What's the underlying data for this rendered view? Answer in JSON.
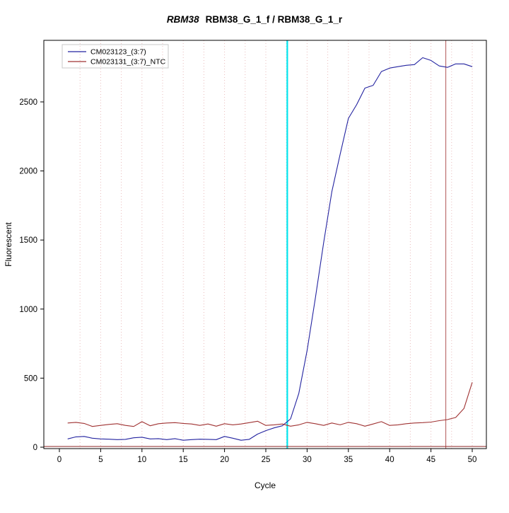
{
  "title": {
    "gene": "RBM38",
    "rest": "RBM38_G_1_f / RBM38_G_1_r"
  },
  "chart_data": {
    "type": "line",
    "title": "RBM38 RBM38_G_1_f / RBM38_G_1_r",
    "xlabel": "Cycle",
    "ylabel": "Fluorescent",
    "xlim": [
      0,
      51
    ],
    "ylim": [
      0,
      2950
    ],
    "x_ticks": [
      0,
      5,
      10,
      15,
      20,
      25,
      30,
      35,
      40,
      45,
      50
    ],
    "y_ticks": [
      0,
      500,
      1000,
      1500,
      2000,
      2500
    ],
    "grid": {
      "vertical_step": 2.5,
      "color": "#e9bcbc",
      "style": "dotted"
    },
    "legend_position": "top-left",
    "baseline_hline": {
      "y": 5,
      "color": "#8b2222"
    },
    "vlines": [
      {
        "x": 27.6,
        "color": "#00e5ee",
        "width": 2.2,
        "name": "threshold-cycle-line"
      },
      {
        "x": 46.8,
        "color": "#b05555",
        "width": 1,
        "name": "cutoff-cycle-line"
      }
    ],
    "x": [
      1,
      2,
      3,
      4,
      5,
      6,
      7,
      8,
      9,
      10,
      11,
      12,
      13,
      14,
      15,
      16,
      17,
      18,
      19,
      20,
      21,
      22,
      23,
      24,
      25,
      26,
      27,
      28,
      29,
      30,
      31,
      32,
      33,
      34,
      35,
      36,
      37,
      38,
      39,
      40,
      41,
      42,
      43,
      44,
      45,
      46,
      47,
      48,
      49,
      50
    ],
    "series": [
      {
        "name": "CM023123_(3:7)",
        "color": "#2323a0",
        "values": [
          60,
          75,
          78,
          65,
          60,
          58,
          55,
          57,
          68,
          72,
          60,
          62,
          55,
          62,
          50,
          55,
          58,
          57,
          55,
          78,
          65,
          50,
          57,
          95,
          120,
          140,
          155,
          205,
          390,
          700,
          1080,
          1480,
          1850,
          2120,
          2380,
          2480,
          2600,
          2620,
          2720,
          2745,
          2755,
          2765,
          2770,
          2820,
          2800,
          2760,
          2750,
          2775,
          2775,
          2755
        ]
      },
      {
        "name": "CM023131_(3:7)_NTC",
        "color": "#a03333",
        "values": [
          175,
          180,
          172,
          150,
          158,
          165,
          170,
          158,
          150,
          185,
          155,
          170,
          175,
          178,
          172,
          168,
          158,
          168,
          152,
          170,
          162,
          168,
          178,
          188,
          158,
          162,
          168,
          152,
          162,
          180,
          170,
          158,
          175,
          162,
          180,
          170,
          152,
          168,
          185,
          158,
          162,
          170,
          175,
          178,
          182,
          192,
          200,
          215,
          280,
          470
        ]
      }
    ]
  }
}
